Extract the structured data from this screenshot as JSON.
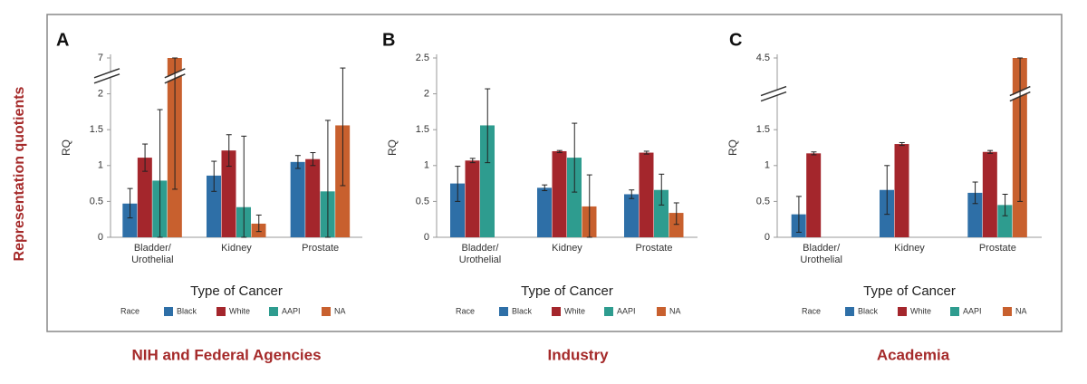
{
  "figure": {
    "ylabel": "Representation quotients"
  },
  "chart_data": [
    {
      "type": "bar",
      "panel_label": "A",
      "caption": "NIH and Federal Agencies",
      "xlabel": "Type of Cancer",
      "ylabel": "RQ",
      "categories": [
        "Bladder/\nUrothelial",
        "Kidney",
        "Prostate"
      ],
      "ylim": [
        0,
        7
      ],
      "axis_break": [
        2,
        7
      ],
      "yticks": [
        0,
        0.5,
        1,
        1.5,
        2,
        7
      ],
      "legend_title": "Race",
      "series": [
        {
          "name": "Black",
          "color": "#2e6fa7",
          "values": [
            0.47,
            0.86,
            1.05
          ],
          "lower": [
            0.27,
            0.64,
            0.96
          ],
          "upper": [
            0.68,
            1.06,
            1.14
          ]
        },
        {
          "name": "White",
          "color": "#a4262c",
          "values": [
            1.11,
            1.21,
            1.09
          ],
          "lower": [
            0.92,
            0.99,
            1.0
          ],
          "upper": [
            1.3,
            1.43,
            1.18
          ]
        },
        {
          "name": "AAPI",
          "color": "#2e9c8f",
          "values": [
            0.79,
            0.42,
            0.64
          ],
          "lower": [
            0,
            0,
            0
          ],
          "upper": [
            1.78,
            1.41,
            1.63
          ]
        },
        {
          "name": "NA",
          "color": "#c8602e",
          "values": [
            7,
            0.19,
            1.56
          ],
          "lower": [
            0.67,
            0.08,
            0.72
          ],
          "upper": [
            7,
            0.31,
            5.6
          ]
        }
      ]
    },
    {
      "type": "bar",
      "panel_label": "B",
      "caption": "Industry",
      "xlabel": "Type of Cancer",
      "ylabel": "RQ",
      "categories": [
        "Bladder/\nUrothelial",
        "Kidney",
        "Prostate"
      ],
      "ylim": [
        0,
        2.5
      ],
      "yticks": [
        0,
        0.5,
        1,
        1.5,
        2,
        2.5
      ],
      "legend_title": "Race",
      "series": [
        {
          "name": "Black",
          "color": "#2e6fa7",
          "values": [
            0.75,
            0.69,
            0.6
          ],
          "lower": [
            0.5,
            0.65,
            0.54
          ],
          "upper": [
            0.99,
            0.73,
            0.66
          ]
        },
        {
          "name": "White",
          "color": "#a4262c",
          "values": [
            1.07,
            1.2,
            1.18
          ],
          "lower": [
            1.04,
            1.18,
            1.16
          ],
          "upper": [
            1.1,
            1.21,
            1.2
          ]
        },
        {
          "name": "AAPI",
          "color": "#2e9c8f",
          "values": [
            1.56,
            1.11,
            0.66
          ],
          "lower": [
            1.04,
            0.63,
            0.45
          ],
          "upper": [
            2.07,
            1.59,
            0.88
          ]
        },
        {
          "name": "NA",
          "color": "#c8602e",
          "values": [
            null,
            0.43,
            0.34
          ],
          "lower": [
            null,
            0,
            0.18
          ],
          "upper": [
            null,
            0.87,
            0.48
          ]
        }
      ]
    },
    {
      "type": "bar",
      "panel_label": "C",
      "caption": "Academia",
      "xlabel": "Type of Cancer",
      "ylabel": "RQ",
      "categories": [
        "Bladder/\nUrothelial",
        "Kidney",
        "Prostate"
      ],
      "ylim": [
        0,
        4.5
      ],
      "axis_break": [
        1.5,
        4.5
      ],
      "yticks": [
        0,
        0.5,
        1,
        1.5,
        4.5
      ],
      "legend_title": "Race",
      "series": [
        {
          "name": "Black",
          "color": "#2e6fa7",
          "values": [
            0.32,
            0.66,
            0.62
          ],
          "lower": [
            0.07,
            0.32,
            0.47
          ],
          "upper": [
            0.57,
            1.0,
            0.77
          ]
        },
        {
          "name": "White",
          "color": "#a4262c",
          "values": [
            1.17,
            1.3,
            1.19
          ],
          "lower": [
            1.15,
            1.28,
            1.17
          ],
          "upper": [
            1.19,
            1.32,
            1.21
          ]
        },
        {
          "name": "AAPI",
          "color": "#2e9c8f",
          "values": [
            null,
            null,
            0.45
          ],
          "lower": [
            null,
            null,
            0.3
          ],
          "upper": [
            null,
            null,
            0.6
          ]
        },
        {
          "name": "NA",
          "color": "#c8602e",
          "values": [
            null,
            null,
            4.5
          ],
          "lower": [
            null,
            null,
            0.5
          ],
          "upper": [
            null,
            null,
            4.5
          ]
        }
      ]
    }
  ]
}
